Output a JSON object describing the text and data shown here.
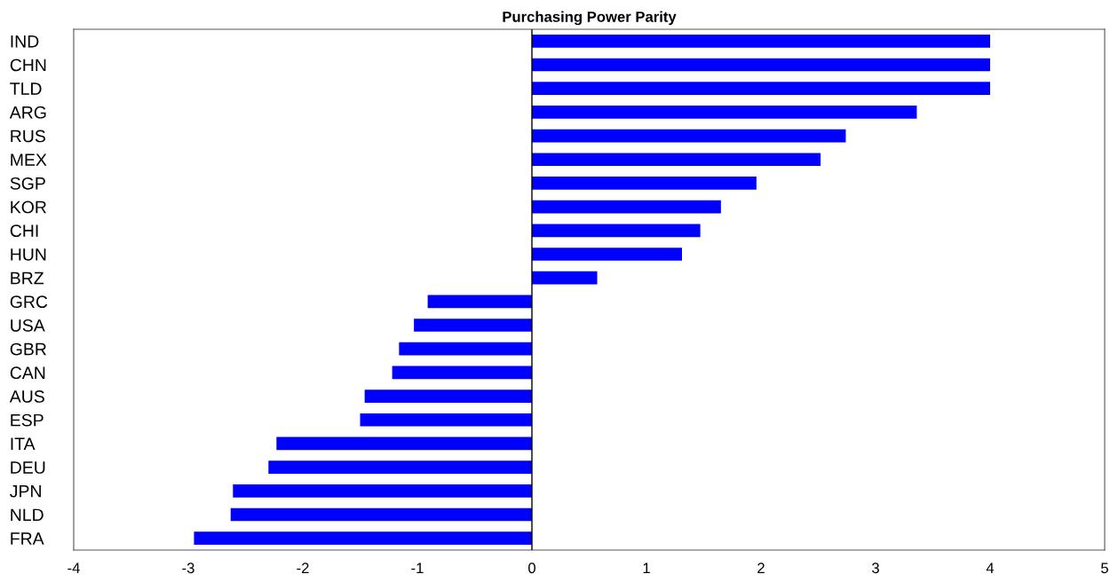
{
  "chart_data": {
    "type": "bar",
    "orientation": "horizontal",
    "title": "Purchasing Power Parity",
    "categories": [
      "IND",
      "CHN",
      "TLD",
      "ARG",
      "RUS",
      "MEX",
      "SGP",
      "KOR",
      "CHI",
      "HUN",
      "BRZ",
      "GRC",
      "USA",
      "GBR",
      "CAN",
      "AUS",
      "ESP",
      "ITA",
      "DEU",
      "JPN",
      "NLD",
      "FRA"
    ],
    "values": [
      4.0,
      4.0,
      4.0,
      3.36,
      2.74,
      2.52,
      1.96,
      1.65,
      1.47,
      1.31,
      0.57,
      -0.91,
      -1.03,
      -1.16,
      -1.22,
      -1.46,
      -1.5,
      -2.23,
      -2.3,
      -2.61,
      -2.63,
      -2.95
    ],
    "color": "#0000ff",
    "xlim": [
      -4,
      5
    ],
    "xticks": [
      -4,
      -3,
      -2,
      -1,
      0,
      1,
      2,
      3,
      4,
      5
    ],
    "ref_lines": [
      {
        "axis": "x",
        "value": 0,
        "color": "#000000"
      }
    ],
    "grid": false
  }
}
